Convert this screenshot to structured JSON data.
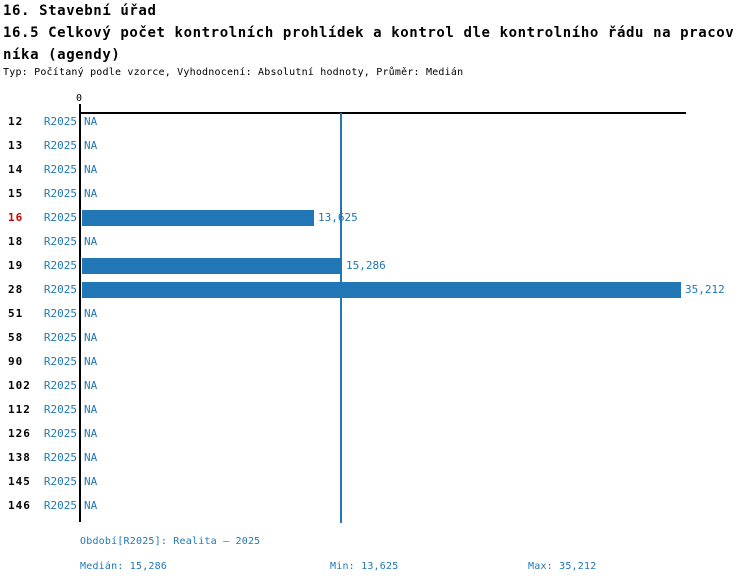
{
  "header": {
    "title": "16. Stavební úřad",
    "subtitle_line1": "16.5 Celkový počet kontrolních prohlídek a kontrol dle kontrolního řádu na pracov",
    "subtitle_line2": "níka (agendy)",
    "meta": "Typ: Počítaný podle vzorce, Vyhodnocení: Absolutní hodnoty, Průměr: Medián"
  },
  "chart_data": {
    "type": "bar",
    "orientation": "horizontal",
    "title": "16.5 Celkový počet kontrolních prohlídek a kontrol dle kontrolního řádu na pracovníka (agendy)",
    "series_name": "R2025",
    "categories": [
      "12",
      "13",
      "14",
      "15",
      "16",
      "18",
      "19",
      "28",
      "51",
      "58",
      "90",
      "102",
      "112",
      "126",
      "138",
      "145",
      "146"
    ],
    "series": [
      {
        "name": "R2025",
        "values": [
          null,
          null,
          null,
          null,
          13625,
          null,
          15286,
          35212,
          null,
          null,
          null,
          null,
          null,
          null,
          null,
          null,
          null
        ]
      }
    ],
    "value_labels": [
      "NA",
      "NA",
      "NA",
      "NA",
      "13,625",
      "NA",
      "15,286",
      "35,212",
      "NA",
      "NA",
      "NA",
      "NA",
      "NA",
      "NA",
      "NA",
      "NA",
      "NA"
    ],
    "highlighted_category": "16",
    "x_zero_label": "0",
    "xlim": [
      0,
      35500
    ],
    "median_line_value": 15286,
    "median": 15286,
    "min": 13625,
    "max": 35212,
    "grid": false,
    "legend": false
  },
  "footer": {
    "period": "Období[R2025]: Realita – 2025",
    "median": "Medián: 15,286",
    "min": "Min: 13,625",
    "max": "Max: 35,212"
  },
  "colors": {
    "bar_blue": "#2176b5",
    "text_blue": "#1f77b4",
    "highlight_red": "#d40000",
    "axis_black": "#000000"
  }
}
